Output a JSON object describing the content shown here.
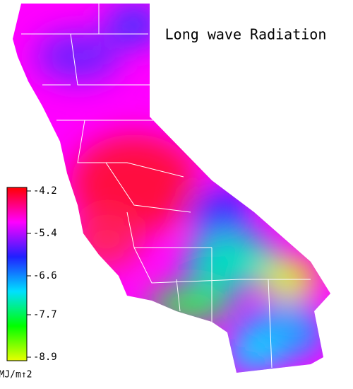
{
  "title": "Long wave Radiation",
  "colorbar": {
    "ticks": [
      -4.2,
      -5.4,
      -6.6,
      -7.7,
      -8.9
    ],
    "colors": [
      "#ff0000",
      "#ff00ff",
      "#2020ff",
      "#00e0ff",
      "#00ff00",
      "#e8ff00"
    ],
    "unit": "MJ/m↑2"
  }
}
